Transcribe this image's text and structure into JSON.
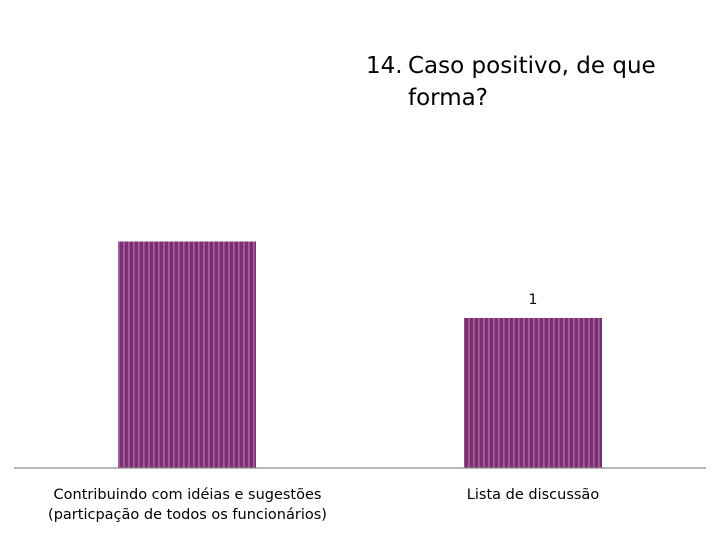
{
  "title": {
    "number": "14.",
    "text": "Caso positivo, de que forma?"
  },
  "chart_data": {
    "type": "bar",
    "categories": [
      "Contribuindo com idéias e sugestões (particpação de todos os funcionários)",
      "Lista de discussão"
    ],
    "values": [
      1.51,
      1
    ],
    "data_labels": [
      "",
      "1"
    ],
    "title": "Caso positivo, de que forma?",
    "xlabel": "",
    "ylabel": "",
    "grid": false,
    "legend": "none",
    "colors": {
      "bar": "#7b2f73",
      "bar_stripe": "#c77fbe",
      "axis": "#8c8c8c"
    }
  }
}
